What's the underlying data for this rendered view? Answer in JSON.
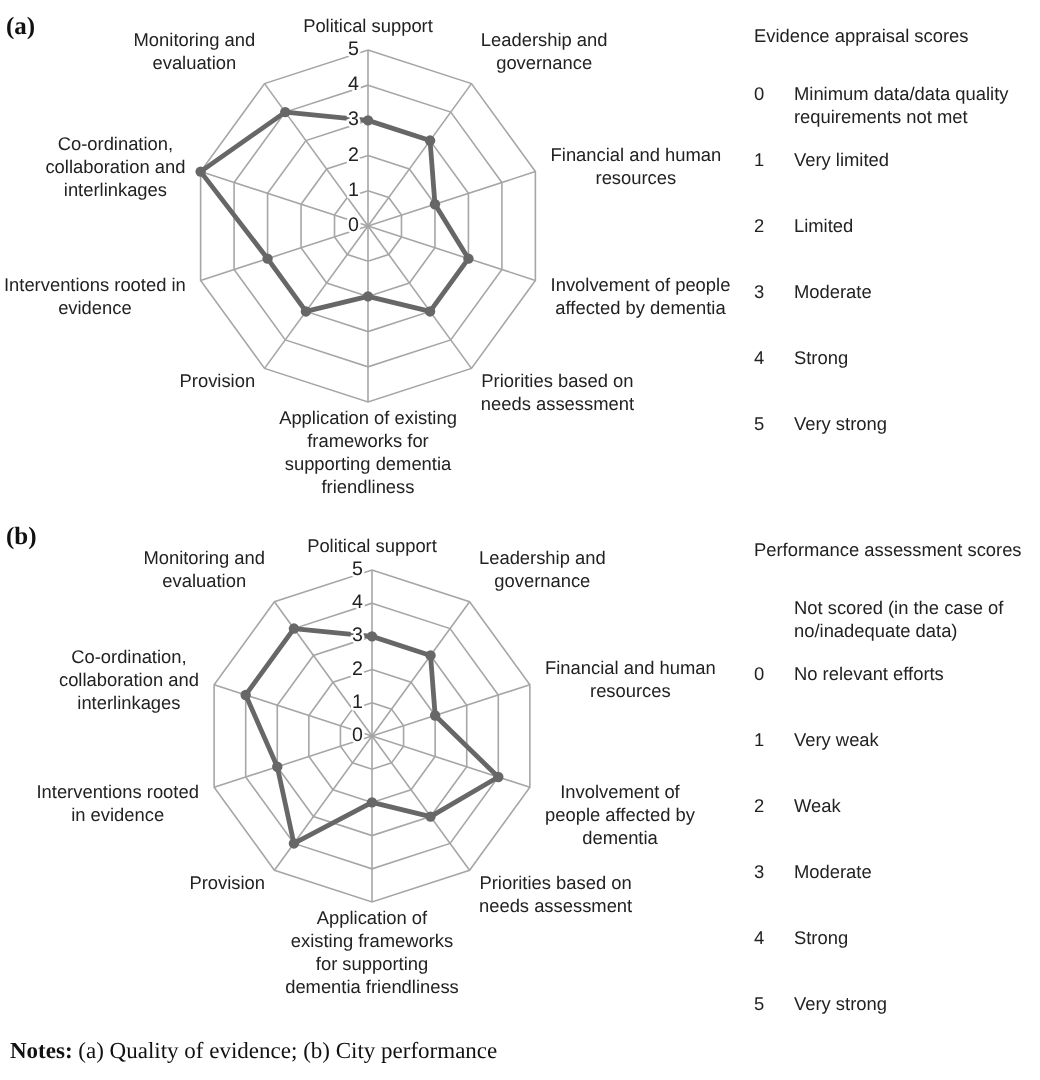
{
  "chart_data": [
    {
      "type": "radar",
      "title": "(a)",
      "categories": [
        "Political support",
        "Leadership and governance",
        "Financial and human resources",
        "Involvement of people affected by dementia",
        "Priorities based on needs assessment",
        "Application of existing frameworks for supporting dementia friendliness",
        "Provision",
        "Interventions rooted in evidence",
        "Co-ordination, collaboration and interlinkages",
        "Monitoring and evaluation"
      ],
      "series": [
        {
          "color": "#676767",
          "values": [
            3,
            3,
            2,
            3,
            3,
            2,
            3,
            3,
            5,
            4
          ]
        }
      ],
      "ylim": [
        0,
        5
      ],
      "yticks": [
        0,
        1,
        2,
        3,
        4,
        5
      ],
      "grid": true,
      "marker": "circle",
      "annotations": [
        "Evidence appraisal scores",
        "0 Minimum data/data quality requirements not met",
        "1 Very limited",
        "2 Limited",
        "3 Moderate",
        "4 Strong",
        "5 Very strong"
      ]
    },
    {
      "type": "radar",
      "title": "(b)",
      "categories": [
        "Political support",
        "Leadership and governance",
        "Financial and human resources",
        "Involvement of people affected by dementia",
        "Priorities based on needs assessment",
        "Application of existing frameworks for supporting dementia friendliness",
        "Provision",
        "Interventions rooted in evidence",
        "Co-ordination, collaboration and interlinkages",
        "Monitoring and evaluation"
      ],
      "series": [
        {
          "color": "#676767",
          "values": [
            3,
            3,
            2,
            4,
            3,
            2,
            4,
            3,
            4,
            4
          ]
        }
      ],
      "ylim": [
        0,
        5
      ],
      "yticks": [
        0,
        1,
        2,
        3,
        4,
        5
      ],
      "grid": true,
      "marker": "circle",
      "annotations": [
        "Performance assessment scores",
        "Not scored (in the case of no/inadequate data)",
        "0 No relevant efforts",
        "1 Very weak",
        "2 Weak",
        "3 Moderate",
        "4 Strong",
        "5 Very strong",
        "Notes: (a) Quality of evidence; (b) City performance"
      ]
    }
  ]
}
